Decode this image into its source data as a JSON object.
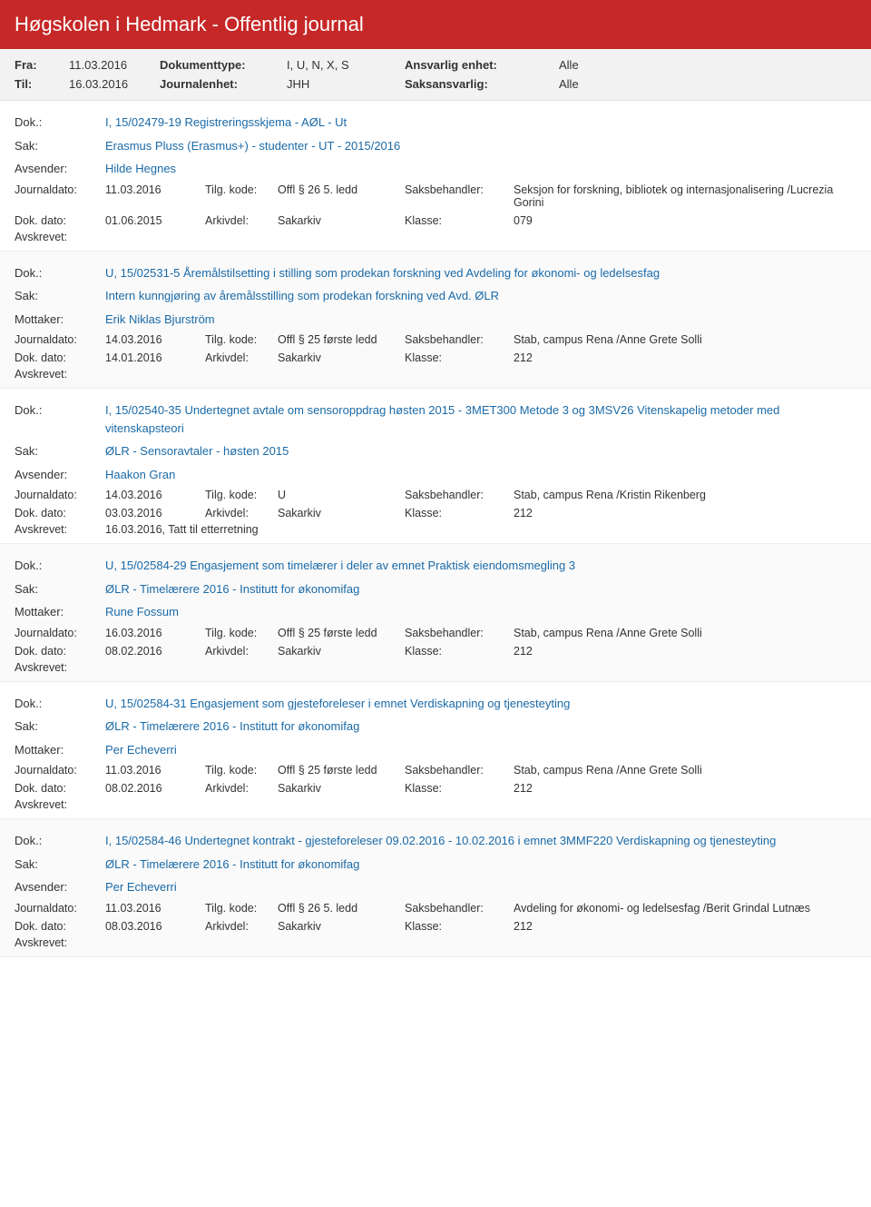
{
  "header": {
    "title": "Høgskolen i Hedmark - Offentlig journal"
  },
  "filter": {
    "fra_label": "Fra:",
    "fra_value": "11.03.2016",
    "til_label": "Til:",
    "til_value": "16.03.2016",
    "dokumenttype_label": "Dokumenttype:",
    "dokumenttype_value": "I, U, N, X, S",
    "journalenhet_label": "Journalenhet:",
    "journalenhet_value": "JHH",
    "ansvarlig_label": "Ansvarlig enhet:",
    "ansvarlig_value": "Alle",
    "saksansvarlig_label": "Saksansvarlig:",
    "saksansvarlig_value": "Alle"
  },
  "labels": {
    "dok": "Dok.:",
    "sak": "Sak:",
    "avsender": "Avsender:",
    "mottaker": "Mottaker:",
    "journaldato": "Journaldato:",
    "tilgkode": "Tilg. kode:",
    "saksbehandler": "Saksbehandler:",
    "dokdato": "Dok. dato:",
    "arkivdel": "Arkivdel:",
    "klasse": "Klasse:",
    "avskrevet": "Avskrevet:"
  },
  "entries": [
    {
      "dok": "I, 15/02479-19 Registreringsskjema - AØL - Ut",
      "sak": "Erasmus Pluss (Erasmus+) - studenter - UT - 2015/2016",
      "party_label": "Avsender:",
      "party": "Hilde Hegnes",
      "journaldato": "11.03.2016",
      "tilgkode": "Offl § 26 5. ledd",
      "saksbehandler": "Seksjon for forskning, bibliotek og internasjonalisering /Lucrezia Gorini",
      "dokdato": "01.06.2015",
      "arkivdel": "Sakarkiv",
      "klasse": "079",
      "avskrevet": ""
    },
    {
      "dok": "U, 15/02531-5 Åremålstilsetting i stilling som prodekan forskning ved Avdeling for økonomi- og ledelsesfag",
      "sak": "Intern kunngjøring av åremålsstilling som prodekan forskning ved Avd. ØLR",
      "party_label": "Mottaker:",
      "party": "Erik Niklas Bjurström",
      "journaldato": "14.03.2016",
      "tilgkode": "Offl § 25 første ledd",
      "saksbehandler": "Stab, campus Rena /Anne Grete Solli",
      "dokdato": "14.01.2016",
      "arkivdel": "Sakarkiv",
      "klasse": "212",
      "avskrevet": ""
    },
    {
      "dok": "I, 15/02540-35 Undertegnet avtale om sensoroppdrag høsten 2015 - 3MET300 Metode 3 og 3MSV26 Vitenskapelig metoder med vitenskapsteori",
      "sak": "ØLR - Sensoravtaler - høsten 2015",
      "party_label": "Avsender:",
      "party": "Haakon Gran",
      "journaldato": "14.03.2016",
      "tilgkode": "U",
      "saksbehandler": "Stab, campus Rena /Kristin Rikenberg",
      "dokdato": "03.03.2016",
      "arkivdel": "Sakarkiv",
      "klasse": "212",
      "avskrevet": "16.03.2016, Tatt til etterretning"
    },
    {
      "dok": "U, 15/02584-29 Engasjement som timelærer i deler av emnet Praktisk eiendomsmegling 3",
      "sak": "ØLR - Timelærere 2016 - Institutt for økonomifag",
      "party_label": "Mottaker:",
      "party": "Rune Fossum",
      "journaldato": "16.03.2016",
      "tilgkode": "Offl § 25 første ledd",
      "saksbehandler": "Stab, campus Rena /Anne Grete Solli",
      "dokdato": "08.02.2016",
      "arkivdel": "Sakarkiv",
      "klasse": "212",
      "avskrevet": ""
    },
    {
      "dok": "U, 15/02584-31 Engasjement som gjesteforeleser i emnet Verdiskapning og tjenesteyting",
      "sak": "ØLR - Timelærere 2016 - Institutt for økonomifag",
      "party_label": "Mottaker:",
      "party": "Per Echeverri",
      "journaldato": "11.03.2016",
      "tilgkode": "Offl § 25 første ledd",
      "saksbehandler": "Stab, campus Rena /Anne Grete Solli",
      "dokdato": "08.02.2016",
      "arkivdel": "Sakarkiv",
      "klasse": "212",
      "avskrevet": ""
    },
    {
      "dok": "I, 15/02584-46 Undertegnet kontrakt - gjesteforeleser 09.02.2016 - 10.02.2016 i emnet 3MMF220 Verdiskapning og tjenesteyting",
      "sak": "ØLR - Timelærere 2016 - Institutt for økonomifag",
      "party_label": "Avsender:",
      "party": "Per Echeverri",
      "journaldato": "11.03.2016",
      "tilgkode": "Offl § 26 5. ledd",
      "saksbehandler": "Avdeling for økonomi- og ledelsesfag /Berit Grindal Lutnæs",
      "dokdato": "08.03.2016",
      "arkivdel": "Sakarkiv",
      "klasse": "212",
      "avskrevet": ""
    }
  ]
}
